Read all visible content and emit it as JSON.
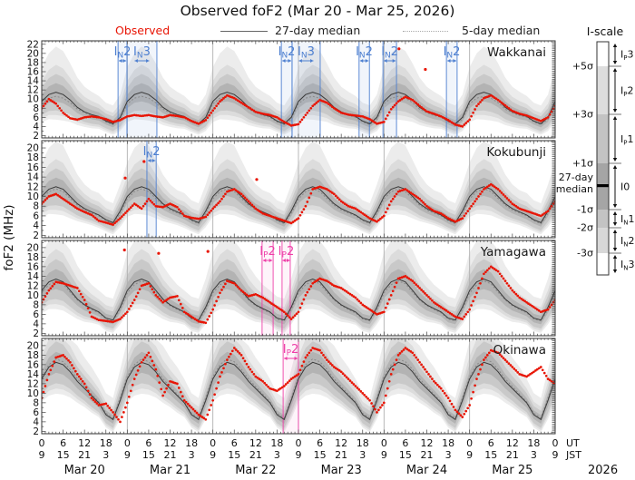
{
  "title": "Observed foF2 (Mar 20 - Mar 25, 2026)",
  "legend": {
    "observed": "Observed",
    "median27": "27-day median",
    "median5": "5-day median"
  },
  "axes": {
    "ylabel": "foF2 (MHz)",
    "ut_cycle": [
      "0",
      "6",
      "12",
      "18"
    ],
    "jst_cycle": [
      "9",
      "15",
      "21",
      "3"
    ],
    "final_ut": "0",
    "final_jst": "9",
    "ut_suffix": "UT",
    "jst_suffix": "JST",
    "days": [
      "Mar 20",
      "Mar 21",
      "Mar 22",
      "Mar 23",
      "Mar 24",
      "Mar 25"
    ],
    "year": "2026"
  },
  "iscale": {
    "title": "I-scale",
    "boundaries": [
      "+5σ",
      "+3σ",
      "+1σ",
      "-1σ",
      "-2σ",
      "-3σ"
    ],
    "median_label_lines": [
      "27-day",
      "median"
    ],
    "classes": [
      "IP3",
      "IP2",
      "IP1",
      "I0",
      "IN1",
      "IN2",
      "IN3"
    ]
  },
  "colors": {
    "observed": "#e81505",
    "median27": "#3a3a3a",
    "median5": "#8a8a8a",
    "event_negative": "#4d7fd0",
    "event_positive": "#ee3fa8",
    "grid": "#b0b0b0",
    "bands": [
      "#ececec",
      "#dcdcdc",
      "#c9c9c9",
      "#b3b3b3"
    ]
  },
  "chart_data": {
    "type": "line",
    "title": "Observed foF2 (Mar 20 - Mar 25, 2026)",
    "ylabel": "foF2 (MHz)",
    "x_unit": "hours UT since Mar 20 2026 00:00",
    "x_range": [
      0,
      144
    ],
    "x_tick_interval_h": 6,
    "sample_step_h": 2,
    "stations": [
      {
        "name": "Wakkanai",
        "y_range_labels": [
          2,
          22
        ],
        "yticks": [
          2,
          4,
          6,
          8,
          10,
          12,
          14,
          16,
          18,
          20,
          22
        ],
        "observed_2h": [
          8.0,
          10.0,
          9.0,
          7.0,
          5.8,
          5.5,
          6.0,
          6.2,
          6.0,
          5.6,
          5.0,
          5.4,
          6.2,
          6.5,
          6.3,
          6.5,
          6.2,
          6.0,
          6.5,
          6.3,
          6.0,
          5.2,
          4.6,
          5.4,
          7.5,
          9.5,
          10.8,
          10.2,
          9.2,
          8.2,
          7.2,
          6.8,
          6.5,
          6.0,
          5.0,
          4.2,
          4.5,
          6.5,
          8.5,
          9.8,
          9.2,
          8.0,
          7.0,
          6.6,
          6.4,
          6.2,
          5.6,
          4.6,
          5.0,
          7.8,
          9.5,
          10.5,
          9.8,
          8.5,
          7.3,
          6.8,
          6.2,
          5.4,
          4.4,
          4.0,
          5.5,
          8.5,
          10.2,
          10.8,
          9.8,
          8.6,
          7.4,
          6.8,
          6.4,
          5.8,
          5.2,
          6.0,
          8.5
        ],
        "median27_cycle_2h": [
          9.5,
          11.0,
          11.5,
          11.0,
          9.8,
          8.2,
          7.2,
          6.6,
          6.2,
          5.2,
          4.6,
          6.0
        ],
        "median5_cycle_2h": [
          9.0,
          10.2,
          10.6,
          10.2,
          9.2,
          7.8,
          7.0,
          6.4,
          6.0,
          5.0,
          4.4,
          5.6
        ],
        "sigma_cycle_2h": [
          1.5,
          1.8,
          2.0,
          1.9,
          1.6,
          1.3,
          1.1,
          1.0,
          0.9,
          0.8,
          0.8,
          1.0
        ],
        "outliers": [
          [
            100.2,
            21.0
          ],
          [
            107.6,
            16.5
          ]
        ],
        "events": [
          {
            "label": "IN2",
            "polarity": "N",
            "start_h": 21.4,
            "end_h": 23.9
          },
          {
            "label": "IN3",
            "polarity": "N",
            "start_h": 23.9,
            "end_h": 32.3
          },
          {
            "label": "IN2",
            "polarity": "N",
            "start_h": 67.2,
            "end_h": 70.2
          },
          {
            "label": "IN3",
            "polarity": "N",
            "start_h": 70.2,
            "end_h": 78.1
          },
          {
            "label": "IN2",
            "polarity": "N",
            "start_h": 89.0,
            "end_h": 91.9
          },
          {
            "label": "IN2",
            "polarity": "N",
            "start_h": 95.7,
            "end_h": 99.5
          },
          {
            "label": "IN2",
            "polarity": "N",
            "start_h": 113.5,
            "end_h": 116.5
          }
        ]
      },
      {
        "name": "Kokubunji",
        "y_range_labels": [
          2,
          20
        ],
        "yticks": [
          2,
          4,
          6,
          8,
          10,
          12,
          14,
          16,
          18,
          20
        ],
        "observed_2h": [
          8.5,
          10.0,
          10.5,
          9.5,
          8.5,
          7.5,
          6.8,
          6.2,
          5.0,
          4.6,
          4.2,
          5.5,
          7.0,
          8.5,
          7.5,
          9.5,
          8.0,
          7.8,
          8.5,
          7.8,
          6.0,
          5.6,
          5.4,
          5.8,
          7.5,
          9.0,
          11.0,
          11.5,
          10.5,
          9.0,
          7.5,
          6.5,
          6.0,
          5.5,
          5.0,
          4.5,
          5.5,
          8.0,
          11.5,
          12.0,
          11.5,
          10.5,
          9.0,
          8.0,
          7.5,
          6.5,
          5.5,
          4.8,
          6.0,
          9.0,
          11.0,
          11.5,
          10.5,
          9.5,
          8.0,
          7.0,
          6.5,
          5.5,
          4.8,
          5.5,
          7.5,
          9.5,
          11.5,
          12.5,
          11.5,
          10.0,
          8.5,
          7.5,
          7.0,
          6.5,
          6.0,
          7.0,
          9.0
        ],
        "median27_cycle_2h": [
          10.0,
          11.5,
          12.0,
          11.5,
          10.0,
          8.5,
          7.5,
          6.8,
          6.2,
          5.2,
          4.6,
          7.0
        ],
        "median5_cycle_2h": [
          9.5,
          11.0,
          11.6,
          11.0,
          9.6,
          8.2,
          7.2,
          6.6,
          6.0,
          5.0,
          4.4,
          6.5
        ],
        "sigma_cycle_2h": [
          1.4,
          1.7,
          1.9,
          1.8,
          1.5,
          1.2,
          1.0,
          0.9,
          0.9,
          0.8,
          0.8,
          1.1
        ],
        "outliers": [
          [
            23.4,
            13.8
          ],
          [
            28.7,
            17.2
          ],
          [
            60.3,
            13.5
          ]
        ],
        "events": [
          {
            "label": "IN2",
            "polarity": "N",
            "start_h": 29.5,
            "end_h": 32.1
          }
        ]
      },
      {
        "name": "Yamagawa",
        "y_range_labels": [
          2,
          20
        ],
        "yticks": [
          2,
          4,
          6,
          8,
          10,
          12,
          14,
          16,
          18,
          20
        ],
        "observed_2h": [
          8.5,
          11.0,
          12.8,
          12.5,
          12.0,
          11.5,
          9.0,
          5.5,
          4.8,
          4.6,
          4.4,
          5.0,
          6.5,
          9.0,
          12.0,
          12.5,
          10.0,
          8.5,
          9.5,
          9.8,
          6.5,
          5.5,
          4.5,
          4.2,
          7.0,
          10.5,
          13.0,
          12.5,
          11.0,
          9.8,
          10.2,
          9.5,
          8.5,
          7.5,
          6.5,
          5.0,
          6.5,
          10.0,
          12.5,
          13.5,
          13.0,
          12.0,
          11.5,
          10.5,
          9.5,
          8.0,
          7.0,
          6.0,
          6.5,
          10.0,
          13.5,
          14.0,
          13.0,
          11.5,
          10.0,
          8.5,
          7.5,
          6.5,
          5.5,
          5.0,
          7.0,
          10.5,
          14.5,
          16.0,
          15.0,
          13.0,
          11.0,
          9.5,
          8.5,
          7.5,
          6.5,
          7.0,
          9.0
        ],
        "median27_cycle_2h": [
          11.0,
          12.8,
          13.4,
          12.8,
          11.0,
          9.2,
          8.0,
          7.2,
          6.5,
          5.2,
          4.8,
          7.5
        ],
        "median5_cycle_2h": [
          10.5,
          12.2,
          13.0,
          12.4,
          10.6,
          9.0,
          7.8,
          7.0,
          6.3,
          5.0,
          4.6,
          7.0
        ],
        "sigma_cycle_2h": [
          1.6,
          1.9,
          2.1,
          2.0,
          1.7,
          1.4,
          1.2,
          1.0,
          0.9,
          0.9,
          0.9,
          1.2
        ],
        "outliers": [
          [
            23.2,
            19.5
          ],
          [
            32.8,
            18.8
          ],
          [
            46.6,
            19.2
          ]
        ],
        "events": [
          {
            "label": "IP2",
            "polarity": "P",
            "start_h": 61.8,
            "end_h": 64.9
          },
          {
            "label": "IP2",
            "polarity": "P",
            "start_h": 67.4,
            "end_h": 69.7
          }
        ]
      },
      {
        "name": "Okinawa",
        "y_range_labels": [
          2,
          20
        ],
        "yticks": [
          2,
          4,
          6,
          8,
          10,
          12,
          14,
          16,
          18,
          20
        ],
        "observed_2h": [
          9.0,
          14.0,
          17.5,
          18.0,
          16.5,
          14.0,
          12.0,
          9.0,
          7.5,
          7.8,
          6.0,
          4.0,
          8.0,
          13.0,
          16.5,
          18.5,
          15.0,
          9.5,
          12.5,
          12.0,
          8.5,
          7.0,
          5.5,
          4.5,
          8.5,
          13.5,
          17.0,
          19.5,
          18.0,
          15.5,
          13.5,
          12.5,
          11.0,
          10.5,
          11.5,
          13.0,
          14.0,
          17.5,
          19.5,
          19.0,
          17.0,
          15.5,
          14.5,
          13.0,
          11.5,
          10.0,
          8.5,
          6.0,
          8.0,
          14.0,
          18.0,
          19.5,
          18.5,
          16.5,
          14.5,
          12.5,
          11.0,
          9.0,
          6.5,
          5.0,
          7.5,
          13.0,
          17.0,
          19.0,
          18.5,
          17.0,
          15.5,
          14.0,
          13.5,
          14.5,
          15.5,
          13.0,
          12.0
        ],
        "median27_cycle_2h": [
          13.0,
          15.5,
          16.5,
          16.0,
          14.5,
          12.5,
          11.0,
          9.5,
          8.0,
          5.5,
          4.5,
          8.5
        ],
        "median5_cycle_2h": [
          13.5,
          16.0,
          17.2,
          16.6,
          15.0,
          13.0,
          11.4,
          9.8,
          8.2,
          5.8,
          4.8,
          9.0
        ],
        "sigma_cycle_2h": [
          1.6,
          2.0,
          2.2,
          2.1,
          1.8,
          1.5,
          1.3,
          1.2,
          1.0,
          0.9,
          0.9,
          1.3
        ],
        "outliers": [],
        "events": [
          {
            "label": "IP2",
            "polarity": "P",
            "start_h": 67.7,
            "end_h": 72.0
          }
        ]
      }
    ]
  }
}
